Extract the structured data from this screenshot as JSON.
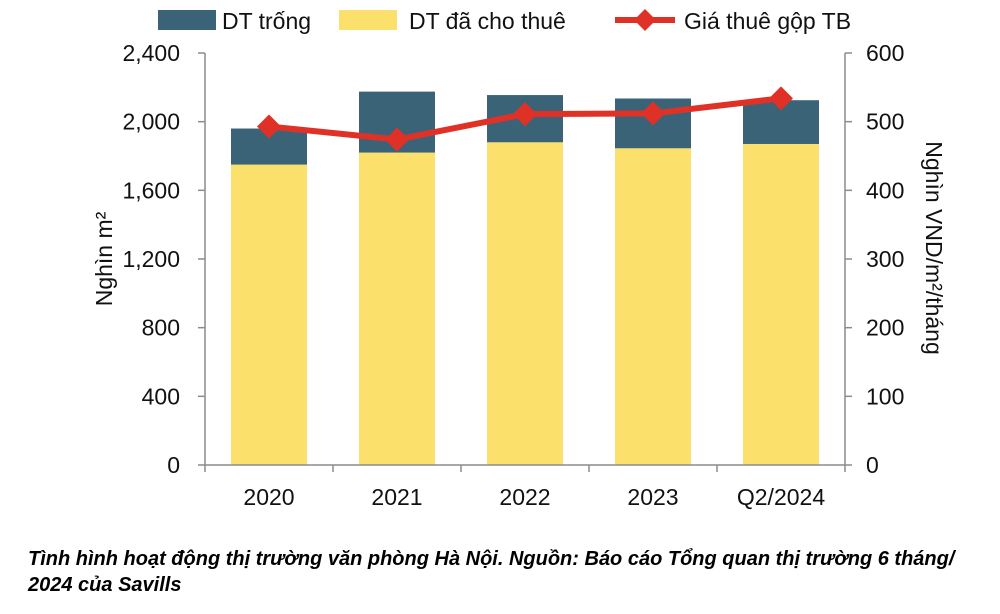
{
  "colors": {
    "vacant": "#3b6378",
    "leased": "#fbe06b",
    "rent_line": "#e03127",
    "axis": "#8c8c8c",
    "text": "#111111"
  },
  "caption": "Tình hình hoạt động thị trường văn phòng Hà Nội. Nguồn: Báo cáo Tổng quan thị trường 6 tháng/ 2024 của Savills",
  "chart_data": {
    "type": "bar",
    "stacked": true,
    "combo_line": true,
    "title": "",
    "categories": [
      "2020",
      "2021",
      "2022",
      "2023",
      "Q2/2024"
    ],
    "series": [
      {
        "name": "DT đã cho thuê",
        "axis": "left",
        "kind": "bar",
        "values": [
          1750,
          1820,
          1880,
          1845,
          1870
        ]
      },
      {
        "name": "DT trống",
        "axis": "left",
        "kind": "bar",
        "values": [
          210,
          355,
          275,
          290,
          255
        ]
      },
      {
        "name": "Giá thuê gộp TB",
        "axis": "right",
        "kind": "line",
        "values": [
          493,
          474,
          511,
          512,
          534
        ]
      }
    ],
    "legend_order": [
      "DT trống",
      "DT đã cho thuê",
      "Giá thuê gộp TB"
    ],
    "legend_position": "top",
    "y_left": {
      "label": "Nghìn m²",
      "min": 0,
      "max": 2400,
      "ticks": [
        "0",
        "400",
        "800",
        "1,200",
        "1,600",
        "2,000",
        "2,400"
      ]
    },
    "y_right": {
      "label": "Nghìn VND/m²/tháng",
      "min": 0,
      "max": 600,
      "ticks": [
        "0",
        "100",
        "200",
        "300",
        "400",
        "500",
        "600"
      ]
    },
    "grid": false
  }
}
